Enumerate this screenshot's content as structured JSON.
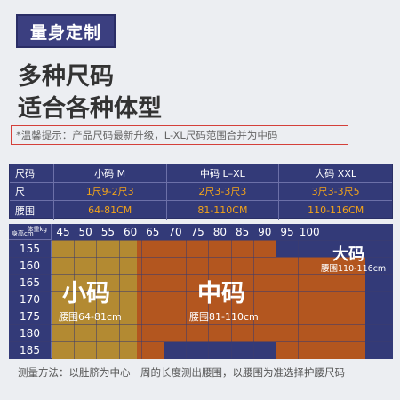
{
  "tag": "量身定制",
  "headline1": "多种尺码",
  "headline2": "适合各种体型",
  "notice": "*温馨提示：产品尺码最新升级，L-XL尺码范围合并为中码",
  "size_table": {
    "header": [
      "尺码",
      "小码 M",
      "中码 L–XL",
      "大码 XXL"
    ],
    "rows": [
      {
        "label": "尺",
        "values": [
          "1尺9-2尺3",
          "2尺3-3尺3",
          "3尺3-3尺5"
        ]
      },
      {
        "label": "腰围",
        "values": [
          "64-81CM",
          "81-110CM",
          "110-116CM"
        ]
      }
    ]
  },
  "matrix": {
    "corner_weight": "体重kg",
    "corner_height": "身高cm",
    "weights": [
      "45",
      "50",
      "55",
      "60",
      "65",
      "70",
      "75",
      "80",
      "85",
      "90",
      "95",
      "100"
    ],
    "heights": [
      "155",
      "160",
      "165",
      "170",
      "175",
      "180",
      "185"
    ],
    "small": {
      "label": "小码",
      "waist": "腰围64-81cm",
      "color": "#b38a32"
    },
    "medium": {
      "label": "中码",
      "waist": "腰围81-110cm",
      "color": "#b3561f"
    },
    "large": {
      "label": "大码",
      "waist": "腰围110-116cm",
      "color": "#2b3070"
    }
  },
  "footer": "测量方法：以肚脐为中心一周的长度测出腰围，以腰围为准选择护腰尺码",
  "colors": {
    "accent": "#3b3f80",
    "orange": "#f2a31a",
    "notice_border": "#d4403a"
  }
}
